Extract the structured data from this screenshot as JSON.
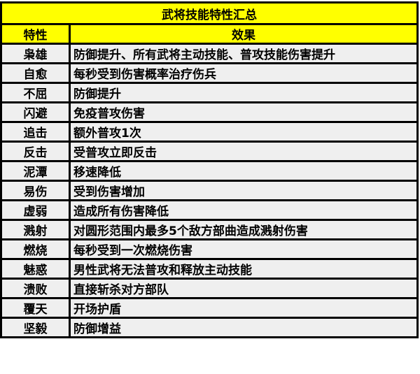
{
  "title": "武将技能特性汇总",
  "headers": {
    "trait": "特性",
    "effect": "效果"
  },
  "colors": {
    "header_bg": "#ffff00",
    "cell_bg": "#efefef",
    "border": "#000000"
  },
  "rows": [
    {
      "trait": "枭雄",
      "effect": "防御提升、所有武将主动技能、普攻技能伤害提升"
    },
    {
      "trait": "自愈",
      "effect": "每秒受到伤害概率治疗伤兵"
    },
    {
      "trait": "不屈",
      "effect": "防御提升"
    },
    {
      "trait": "闪避",
      "effect": "免疫普攻伤害"
    },
    {
      "trait": "追击",
      "effect": "额外普攻1次"
    },
    {
      "trait": "反击",
      "effect": "受普攻立即反击"
    },
    {
      "trait": "泥潭",
      "effect": "移速降低"
    },
    {
      "trait": "易伤",
      "effect": "受到伤害增加"
    },
    {
      "trait": "虚弱",
      "effect": "造成所有伤害降低"
    },
    {
      "trait": "溅射",
      "effect": "对圆形范围内最多5个敌方部曲造成溅射伤害"
    },
    {
      "trait": "燃烧",
      "effect": "每秒受到一次燃烧伤害"
    },
    {
      "trait": "魅惑",
      "effect": "男性武将无法普攻和释放主动技能"
    },
    {
      "trait": "溃败",
      "effect": "直接斩杀对方部队"
    },
    {
      "trait": "覆天",
      "effect": "开场护盾"
    },
    {
      "trait": "坚毅",
      "effect": "防御增益"
    }
  ]
}
